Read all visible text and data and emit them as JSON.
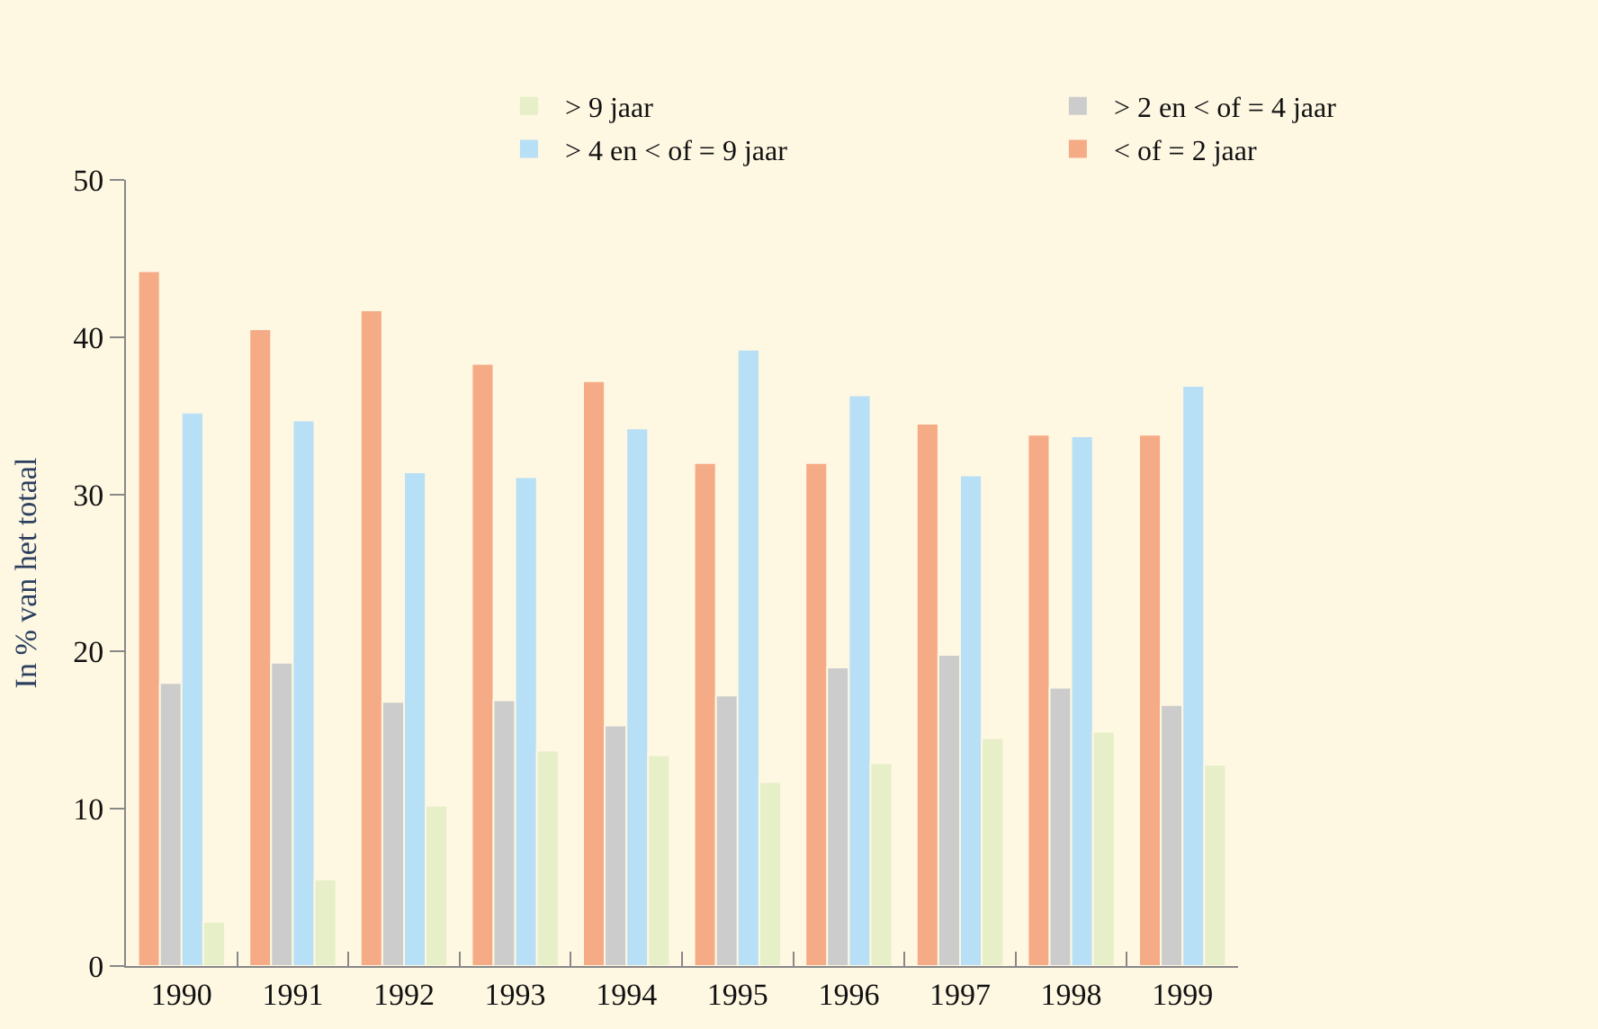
{
  "chart_data": {
    "type": "bar",
    "ylabel": "In % van het totaal",
    "categories": [
      "1990",
      "1991",
      "1992",
      "1993",
      "1994",
      "1995",
      "1996",
      "1997",
      "1998",
      "1999"
    ],
    "series": [
      {
        "name": "< of = 2 jaar",
        "color": "#f5ab85",
        "values": [
          44.2,
          40.5,
          41.7,
          38.3,
          37.2,
          32.0,
          32.0,
          34.5,
          33.8,
          33.8
        ]
      },
      {
        "name": "> 2 en < of = 4 jaar",
        "color": "#cccccc",
        "values": [
          18.0,
          19.3,
          16.8,
          16.9,
          15.3,
          17.2,
          19.0,
          19.8,
          17.7,
          16.6
        ]
      },
      {
        "name": "> 4 en < of = 9 jaar",
        "color": "#b7dff6",
        "values": [
          35.2,
          34.7,
          31.4,
          31.1,
          34.2,
          39.2,
          36.3,
          31.2,
          33.7,
          36.9
        ]
      },
      {
        "name": "> 9 jaar",
        "color": "#e6efc8",
        "values": [
          2.8,
          5.5,
          10.2,
          13.7,
          13.4,
          11.7,
          12.9,
          14.5,
          14.9,
          12.8
        ]
      }
    ],
    "ylim": [
      0,
      50
    ],
    "yticks": [
      0,
      10,
      20,
      30,
      40,
      50
    ],
    "grid": false,
    "legend": "top"
  }
}
